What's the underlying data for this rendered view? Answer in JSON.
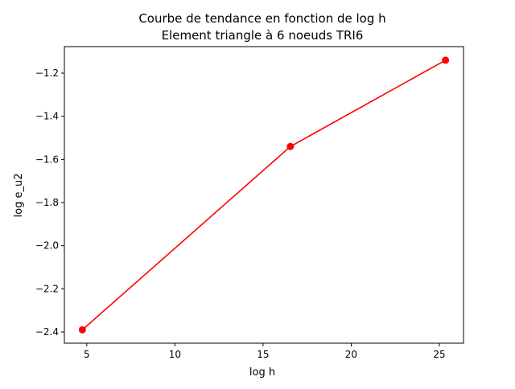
{
  "chart_data": {
    "type": "line",
    "title": "Courbe de tendance en fonction de log h",
    "subtitle": "Element triangle à 6 noeuds TRI6",
    "xlabel": "log h",
    "ylabel": "log e_u2",
    "x": [
      4.75,
      16.55,
      25.35
    ],
    "series": [
      {
        "values": [
          -2.39,
          -1.54,
          -1.14
        ],
        "color": "#ff0000",
        "marker": "circle"
      }
    ],
    "xlim": [
      3.73,
      26.37
    ],
    "ylim": [
      -2.452,
      -1.077
    ],
    "xticks": [
      5,
      10,
      15,
      20,
      25
    ],
    "xtick_labels": [
      "5",
      "10",
      "15",
      "20",
      "25"
    ],
    "yticks": [
      -2.4,
      -2.2,
      -2.0,
      -1.8,
      -1.6,
      -1.4,
      -1.2
    ],
    "ytick_labels": [
      "−2.4",
      "−2.2",
      "−2.0",
      "−1.8",
      "−1.6",
      "−1.4",
      "−1.2"
    ],
    "grid": false,
    "legend": "none"
  }
}
